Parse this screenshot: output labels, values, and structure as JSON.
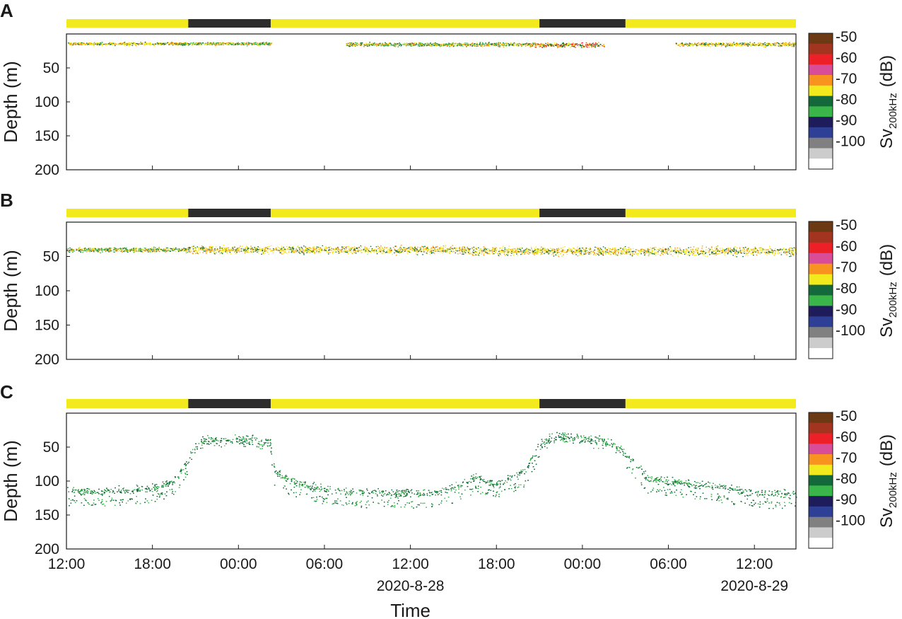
{
  "figure": {
    "xlabel": "Time",
    "colorbar_label_main": "Sv",
    "colorbar_label_sub": "200kHz",
    "colorbar_label_unit": "(dB)",
    "date_labels": [
      {
        "text": "2020-8-28",
        "at_hours": 36
      },
      {
        "text": "2020-8-29",
        "at_hours": 60
      }
    ]
  },
  "colors": {
    "day_bar": "#f2ea1d",
    "night_bar": "#2d2d2d",
    "axis": "#1a1a1a"
  },
  "colorbar": {
    "ticks": [
      "-50",
      "-60",
      "-70",
      "-80",
      "-90",
      "-100"
    ],
    "levels": [
      {
        "color": "#6b3a15"
      },
      {
        "color": "#a3341f"
      },
      {
        "color": "#ee2027"
      },
      {
        "color": "#d94c97"
      },
      {
        "color": "#f7931e"
      },
      {
        "color": "#f2ea1d"
      },
      {
        "color": "#13693a"
      },
      {
        "color": "#39b54a"
      },
      {
        "color": "#1f1c5c"
      },
      {
        "color": "#2e3f96"
      },
      {
        "color": "#808080"
      },
      {
        "color": "#cccccc"
      },
      {
        "color": "#ffffff"
      }
    ]
  },
  "chart_data": [
    {
      "panel": "A",
      "type": "heatmap",
      "xlabel": "",
      "ylabel": "Depth (m)",
      "ylim": [
        0,
        200
      ],
      "yticks": [
        "50",
        "100",
        "150",
        "200"
      ],
      "x_range_hours": [
        12,
        37.5
      ],
      "x_ticks": [],
      "night_periods_hours": [
        [
          20.5,
          26.25
        ],
        [
          45.0,
          51.0
        ]
      ],
      "scattering_layers": [
        {
          "start_h": 12.1,
          "end_h": 20.3,
          "depth_center": 14,
          "depth_spread": 3,
          "color_level": "-70"
        },
        {
          "start_h": 19.6,
          "end_h": 26.3,
          "depth_center": 14,
          "depth_spread": 3,
          "color_level": "-75"
        },
        {
          "start_h": 31.5,
          "end_h": 44.6,
          "depth_center": 15,
          "depth_spread": 4,
          "color_level": "-75"
        },
        {
          "start_h": 44.6,
          "end_h": 49.5,
          "depth_center": 16,
          "depth_spread": 5,
          "color_level": "-65"
        },
        {
          "start_h": 54.5,
          "end_h": 62.9,
          "depth_center": 15,
          "depth_spread": 4,
          "color_level": "-70"
        }
      ]
    },
    {
      "panel": "B",
      "type": "heatmap",
      "xlabel": "",
      "ylabel": "Depth (m)",
      "ylim": [
        0,
        200
      ],
      "yticks": [
        "50",
        "100",
        "150",
        "200"
      ],
      "x_range_hours": [
        12,
        37.5
      ],
      "x_ticks": [],
      "night_periods_hours": [
        [
          20.5,
          26.25
        ],
        [
          45.0,
          51.0
        ]
      ],
      "scattering_layers": [
        {
          "start_h": 12.0,
          "end_h": 20.5,
          "depth_center": 40,
          "depth_spread": 5,
          "color_level": "-75"
        },
        {
          "start_h": 20.5,
          "end_h": 40.0,
          "depth_center": 40,
          "depth_spread": 8,
          "color_level": "-70"
        },
        {
          "start_h": 40.0,
          "end_h": 62.9,
          "depth_center": 42,
          "depth_spread": 9,
          "color_level": "-70"
        }
      ]
    },
    {
      "panel": "C",
      "type": "heatmap",
      "xlabel": "Time",
      "ylabel": "Depth (m)",
      "ylim": [
        0,
        200
      ],
      "yticks": [
        "50",
        "100",
        "150",
        "200"
      ],
      "x_range_hours": [
        12,
        37.5
      ],
      "x_ticks": [
        {
          "label": "12:00",
          "h": 12
        },
        {
          "label": "18:00",
          "h": 18
        },
        {
          "label": "00:00",
          "h": 24
        },
        {
          "label": "06:00",
          "h": 30
        },
        {
          "label": "12:00",
          "h": 36
        },
        {
          "label": "18:00",
          "h": 42
        },
        {
          "label": "00:00",
          "h": 48
        },
        {
          "label": "06:00",
          "h": 54
        },
        {
          "label": "12:00",
          "h": 60
        }
      ],
      "night_periods_hours": [
        [
          20.5,
          26.25
        ],
        [
          45.0,
          51.0
        ]
      ],
      "migration_track": [
        [
          12.0,
          115
        ],
        [
          14.0,
          115
        ],
        [
          16.0,
          113
        ],
        [
          18.0,
          110
        ],
        [
          19.5,
          100
        ],
        [
          20.6,
          65
        ],
        [
          21.2,
          45
        ],
        [
          22.0,
          40
        ],
        [
          23.5,
          40
        ],
        [
          25.0,
          40
        ],
        [
          26.2,
          45
        ],
        [
          26.5,
          85
        ],
        [
          27.5,
          100
        ],
        [
          29.0,
          108
        ],
        [
          31.0,
          115
        ],
        [
          33.0,
          117
        ],
        [
          35.0,
          118
        ],
        [
          37.0,
          117
        ],
        [
          39.0,
          110
        ],
        [
          40.5,
          95
        ],
        [
          42.0,
          105
        ],
        [
          44.0,
          85
        ],
        [
          45.0,
          45
        ],
        [
          46.5,
          35
        ],
        [
          48.0,
          38
        ],
        [
          50.0,
          45
        ],
        [
          51.5,
          70
        ],
        [
          52.5,
          95
        ],
        [
          54.0,
          100
        ],
        [
          56.0,
          105
        ],
        [
          58.0,
          110
        ],
        [
          60.0,
          118
        ],
        [
          62.9,
          120
        ]
      ]
    }
  ]
}
